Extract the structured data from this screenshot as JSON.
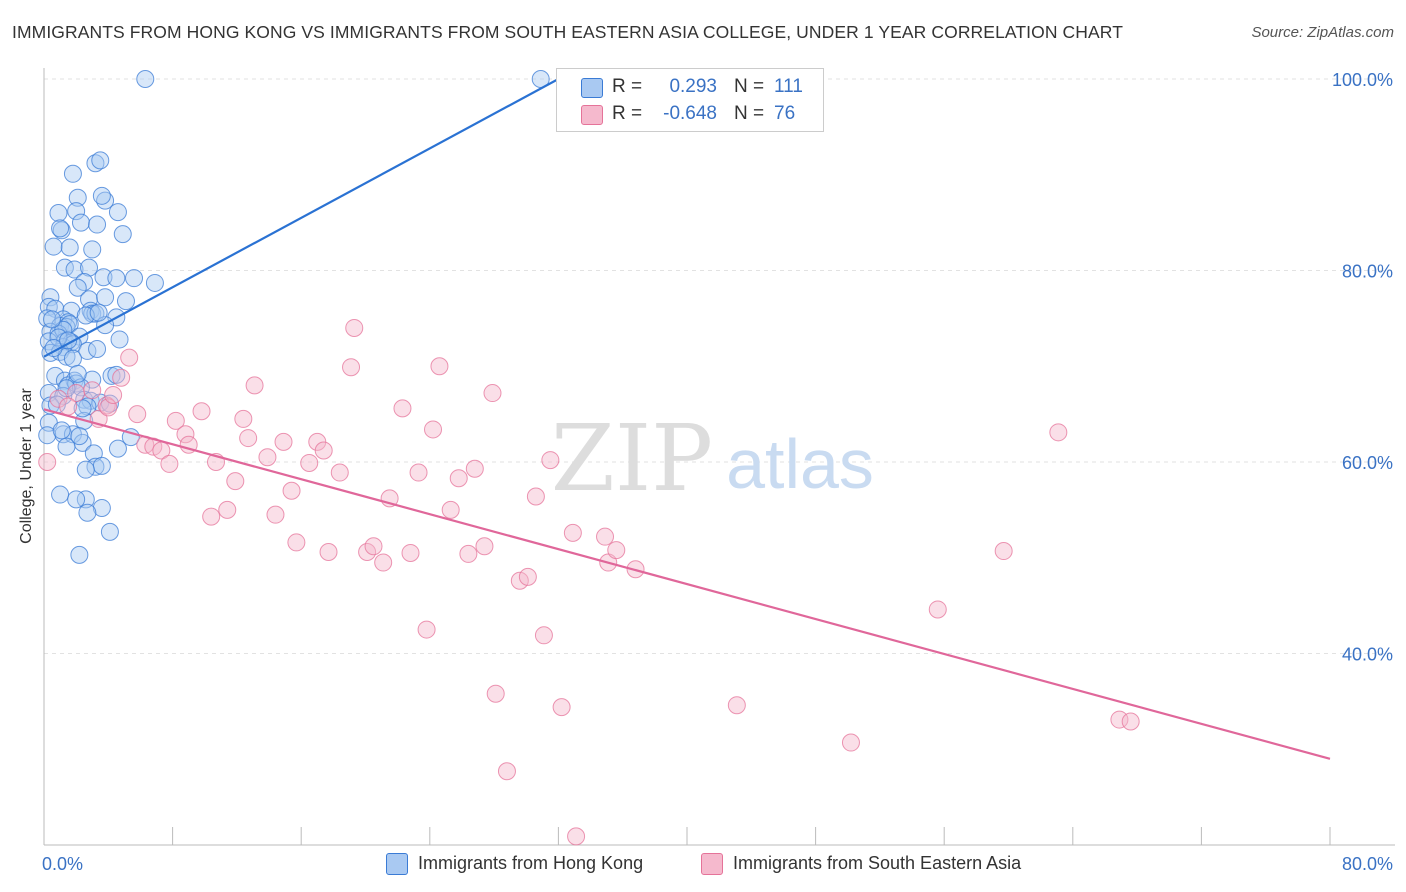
{
  "title": "IMMIGRANTS FROM HONG KONG VS IMMIGRANTS FROM SOUTH EASTERN ASIA COLLEGE, UNDER 1 YEAR CORRELATION CHART",
  "source": "Source: ZipAtlas.com",
  "watermark": {
    "zip": "ZIP",
    "atlas": "atlas"
  },
  "legend_box": {
    "r_label": "R =",
    "n_label": "N =",
    "rows": [
      {
        "r": "0.293",
        "n": "111"
      },
      {
        "r": "-0.648",
        "n": "76"
      }
    ]
  },
  "colors": {
    "blue": "#3a7bd5",
    "blue_fill": "#a9c9f2",
    "blue_line": "#2a72d3",
    "pink": "#e57399",
    "pink_fill": "#f5b9cd",
    "pink_line": "#e0679a",
    "axis_text": "#3a72c4",
    "grid": "#e2e2e2"
  },
  "chart_data": {
    "type": "scatter",
    "title": "IMMIGRANTS FROM HONG KONG VS IMMIGRANTS FROM SOUTH EASTERN ASIA COLLEGE, UNDER 1 YEAR CORRELATION CHART",
    "xlabel": "",
    "ylabel": "College, Under 1 year",
    "xlim": [
      0,
      80
    ],
    "ylim": [
      20,
      100
    ],
    "x_tick_labels": [
      "0.0%",
      "80.0%"
    ],
    "y_tick_labels": [
      "40.0%",
      "60.0%",
      "80.0%",
      "100.0%"
    ],
    "y_ticks": [
      40,
      60,
      80,
      100
    ],
    "grid": true,
    "legend_position": "bottom",
    "series": [
      {
        "name": "Immigrants from Hong Kong",
        "R": 0.293,
        "N": 111,
        "trend": {
          "x": [
            0,
            32
          ],
          "y": [
            71,
            100
          ]
        },
        "points": [
          [
            6.3,
            100
          ],
          [
            30.9,
            100
          ],
          [
            3.2,
            91.2
          ],
          [
            3.5,
            91.5
          ],
          [
            1.8,
            90.1
          ],
          [
            2.1,
            87.6
          ],
          [
            3.8,
            87.3
          ],
          [
            3.6,
            87.8
          ],
          [
            0.9,
            86.0
          ],
          [
            2.0,
            86.2
          ],
          [
            4.6,
            86.1
          ],
          [
            2.3,
            85.0
          ],
          [
            3.3,
            84.8
          ],
          [
            1.1,
            84.2
          ],
          [
            1.0,
            84.4
          ],
          [
            4.9,
            83.8
          ],
          [
            0.6,
            82.5
          ],
          [
            3.0,
            82.2
          ],
          [
            1.6,
            82.4
          ],
          [
            1.3,
            80.3
          ],
          [
            1.9,
            80.1
          ],
          [
            2.8,
            80.3
          ],
          [
            3.7,
            79.3
          ],
          [
            4.5,
            79.2
          ],
          [
            5.6,
            79.2
          ],
          [
            6.9,
            78.7
          ],
          [
            2.5,
            78.8
          ],
          [
            2.1,
            78.2
          ],
          [
            0.4,
            77.2
          ],
          [
            2.8,
            77.0
          ],
          [
            3.8,
            77.2
          ],
          [
            5.1,
            76.8
          ],
          [
            0.3,
            76.2
          ],
          [
            0.7,
            76.0
          ],
          [
            1.7,
            75.8
          ],
          [
            2.9,
            75.8
          ],
          [
            3.0,
            75.5
          ],
          [
            3.2,
            75.5
          ],
          [
            4.5,
            75.1
          ],
          [
            0.2,
            75.0
          ],
          [
            1.2,
            74.9
          ],
          [
            1.5,
            74.6
          ],
          [
            1.0,
            74.2
          ],
          [
            1.4,
            74.1
          ],
          [
            1.6,
            74.4
          ],
          [
            3.8,
            74.3
          ],
          [
            0.4,
            73.6
          ],
          [
            0.9,
            73.4
          ],
          [
            1.2,
            73.8
          ],
          [
            2.2,
            73.1
          ],
          [
            4.7,
            72.8
          ],
          [
            0.3,
            72.6
          ],
          [
            1.3,
            72.6
          ],
          [
            1.7,
            72.5
          ],
          [
            1.2,
            72.0
          ],
          [
            1.8,
            72.3
          ],
          [
            0.4,
            71.4
          ],
          [
            1.0,
            71.5
          ],
          [
            1.4,
            71.0
          ],
          [
            2.7,
            71.6
          ],
          [
            3.3,
            71.8
          ],
          [
            1.8,
            70.8
          ],
          [
            0.7,
            69.0
          ],
          [
            1.3,
            68.5
          ],
          [
            1.9,
            68.5
          ],
          [
            3.0,
            68.6
          ],
          [
            4.2,
            69.0
          ],
          [
            4.5,
            69.1
          ],
          [
            1.5,
            68.0
          ],
          [
            2.0,
            68.2
          ],
          [
            2.3,
            67.8
          ],
          [
            0.3,
            67.2
          ],
          [
            1.2,
            66.9
          ],
          [
            2.5,
            66.5
          ],
          [
            2.9,
            66.4
          ],
          [
            3.5,
            66.2
          ],
          [
            4.1,
            66.1
          ],
          [
            0.4,
            65.9
          ],
          [
            2.7,
            65.8
          ],
          [
            0.3,
            64.1
          ],
          [
            2.5,
            64.3
          ],
          [
            1.2,
            62.9
          ],
          [
            1.8,
            62.9
          ],
          [
            0.2,
            62.8
          ],
          [
            5.4,
            62.6
          ],
          [
            2.4,
            62.0
          ],
          [
            1.4,
            61.6
          ],
          [
            4.6,
            61.4
          ],
          [
            3.1,
            60.9
          ],
          [
            3.2,
            59.5
          ],
          [
            3.6,
            59.6
          ],
          [
            2.6,
            59.2
          ],
          [
            1.0,
            56.6
          ],
          [
            2.6,
            56.1
          ],
          [
            2.0,
            56.1
          ],
          [
            3.6,
            55.2
          ],
          [
            2.7,
            54.7
          ],
          [
            4.1,
            52.7
          ],
          [
            2.2,
            50.3
          ],
          [
            2.4,
            65.6
          ],
          [
            0.8,
            66.0
          ],
          [
            1.4,
            67.7
          ],
          [
            2.1,
            69.2
          ],
          [
            2.6,
            75.3
          ],
          [
            0.9,
            73.0
          ],
          [
            3.4,
            75.6
          ],
          [
            0.6,
            71.9
          ],
          [
            2.2,
            62.7
          ],
          [
            1.1,
            63.3
          ],
          [
            0.5,
            74.9
          ],
          [
            1.5,
            72.7
          ]
        ]
      },
      {
        "name": "Immigrants from South Eastern Asia",
        "R": -0.648,
        "N": 76,
        "trend": {
          "x": [
            0,
            80
          ],
          "y": [
            65.5,
            29
          ]
        },
        "points": [
          [
            0.2,
            60.0
          ],
          [
            0.9,
            66.6
          ],
          [
            2.0,
            67.2
          ],
          [
            3.0,
            67.5
          ],
          [
            3.4,
            64.5
          ],
          [
            3.9,
            65.9
          ],
          [
            4.0,
            65.7
          ],
          [
            4.3,
            67.0
          ],
          [
            4.8,
            68.8
          ],
          [
            5.3,
            70.9
          ],
          [
            5.8,
            65.0
          ],
          [
            6.3,
            61.8
          ],
          [
            6.8,
            61.6
          ],
          [
            7.3,
            61.2
          ],
          [
            7.8,
            59.8
          ],
          [
            8.2,
            64.3
          ],
          [
            8.8,
            62.9
          ],
          [
            9.0,
            61.8
          ],
          [
            9.8,
            65.3
          ],
          [
            10.4,
            54.3
          ],
          [
            10.7,
            60.0
          ],
          [
            11.4,
            55.0
          ],
          [
            11.9,
            58.0
          ],
          [
            12.4,
            64.5
          ],
          [
            12.7,
            62.5
          ],
          [
            13.1,
            68.0
          ],
          [
            13.9,
            60.5
          ],
          [
            14.4,
            54.5
          ],
          [
            14.9,
            62.1
          ],
          [
            15.4,
            57.0
          ],
          [
            15.7,
            51.6
          ],
          [
            16.5,
            59.9
          ],
          [
            17.0,
            62.1
          ],
          [
            17.4,
            61.2
          ],
          [
            17.7,
            50.6
          ],
          [
            18.4,
            58.9
          ],
          [
            19.1,
            69.9
          ],
          [
            19.3,
            74.0
          ],
          [
            20.1,
            50.6
          ],
          [
            20.5,
            51.2
          ],
          [
            21.1,
            49.5
          ],
          [
            21.5,
            56.2
          ],
          [
            22.3,
            65.6
          ],
          [
            22.8,
            50.5
          ],
          [
            23.3,
            58.9
          ],
          [
            23.8,
            42.5
          ],
          [
            24.2,
            63.4
          ],
          [
            24.6,
            70.0
          ],
          [
            25.3,
            55.0
          ],
          [
            25.8,
            58.3
          ],
          [
            26.4,
            50.4
          ],
          [
            26.8,
            59.3
          ],
          [
            27.4,
            51.2
          ],
          [
            27.9,
            67.2
          ],
          [
            28.1,
            35.8
          ],
          [
            28.8,
            27.7
          ],
          [
            29.6,
            47.6
          ],
          [
            30.1,
            48.0
          ],
          [
            30.6,
            56.4
          ],
          [
            31.1,
            41.9
          ],
          [
            31.5,
            60.2
          ],
          [
            32.2,
            34.4
          ],
          [
            32.9,
            52.6
          ],
          [
            33.1,
            20.9
          ],
          [
            34.9,
            52.2
          ],
          [
            35.1,
            49.5
          ],
          [
            35.6,
            50.8
          ],
          [
            36.8,
            48.8
          ],
          [
            43.1,
            34.6
          ],
          [
            50.2,
            30.7
          ],
          [
            55.6,
            44.6
          ],
          [
            59.7,
            50.7
          ],
          [
            63.1,
            63.1
          ],
          [
            66.9,
            33.1
          ],
          [
            67.6,
            32.9
          ],
          [
            1.5,
            65.8
          ]
        ]
      }
    ]
  },
  "bottom_legend": [
    {
      "label": "Immigrants from Hong Kong"
    },
    {
      "label": "Immigrants from South Eastern Asia"
    }
  ]
}
